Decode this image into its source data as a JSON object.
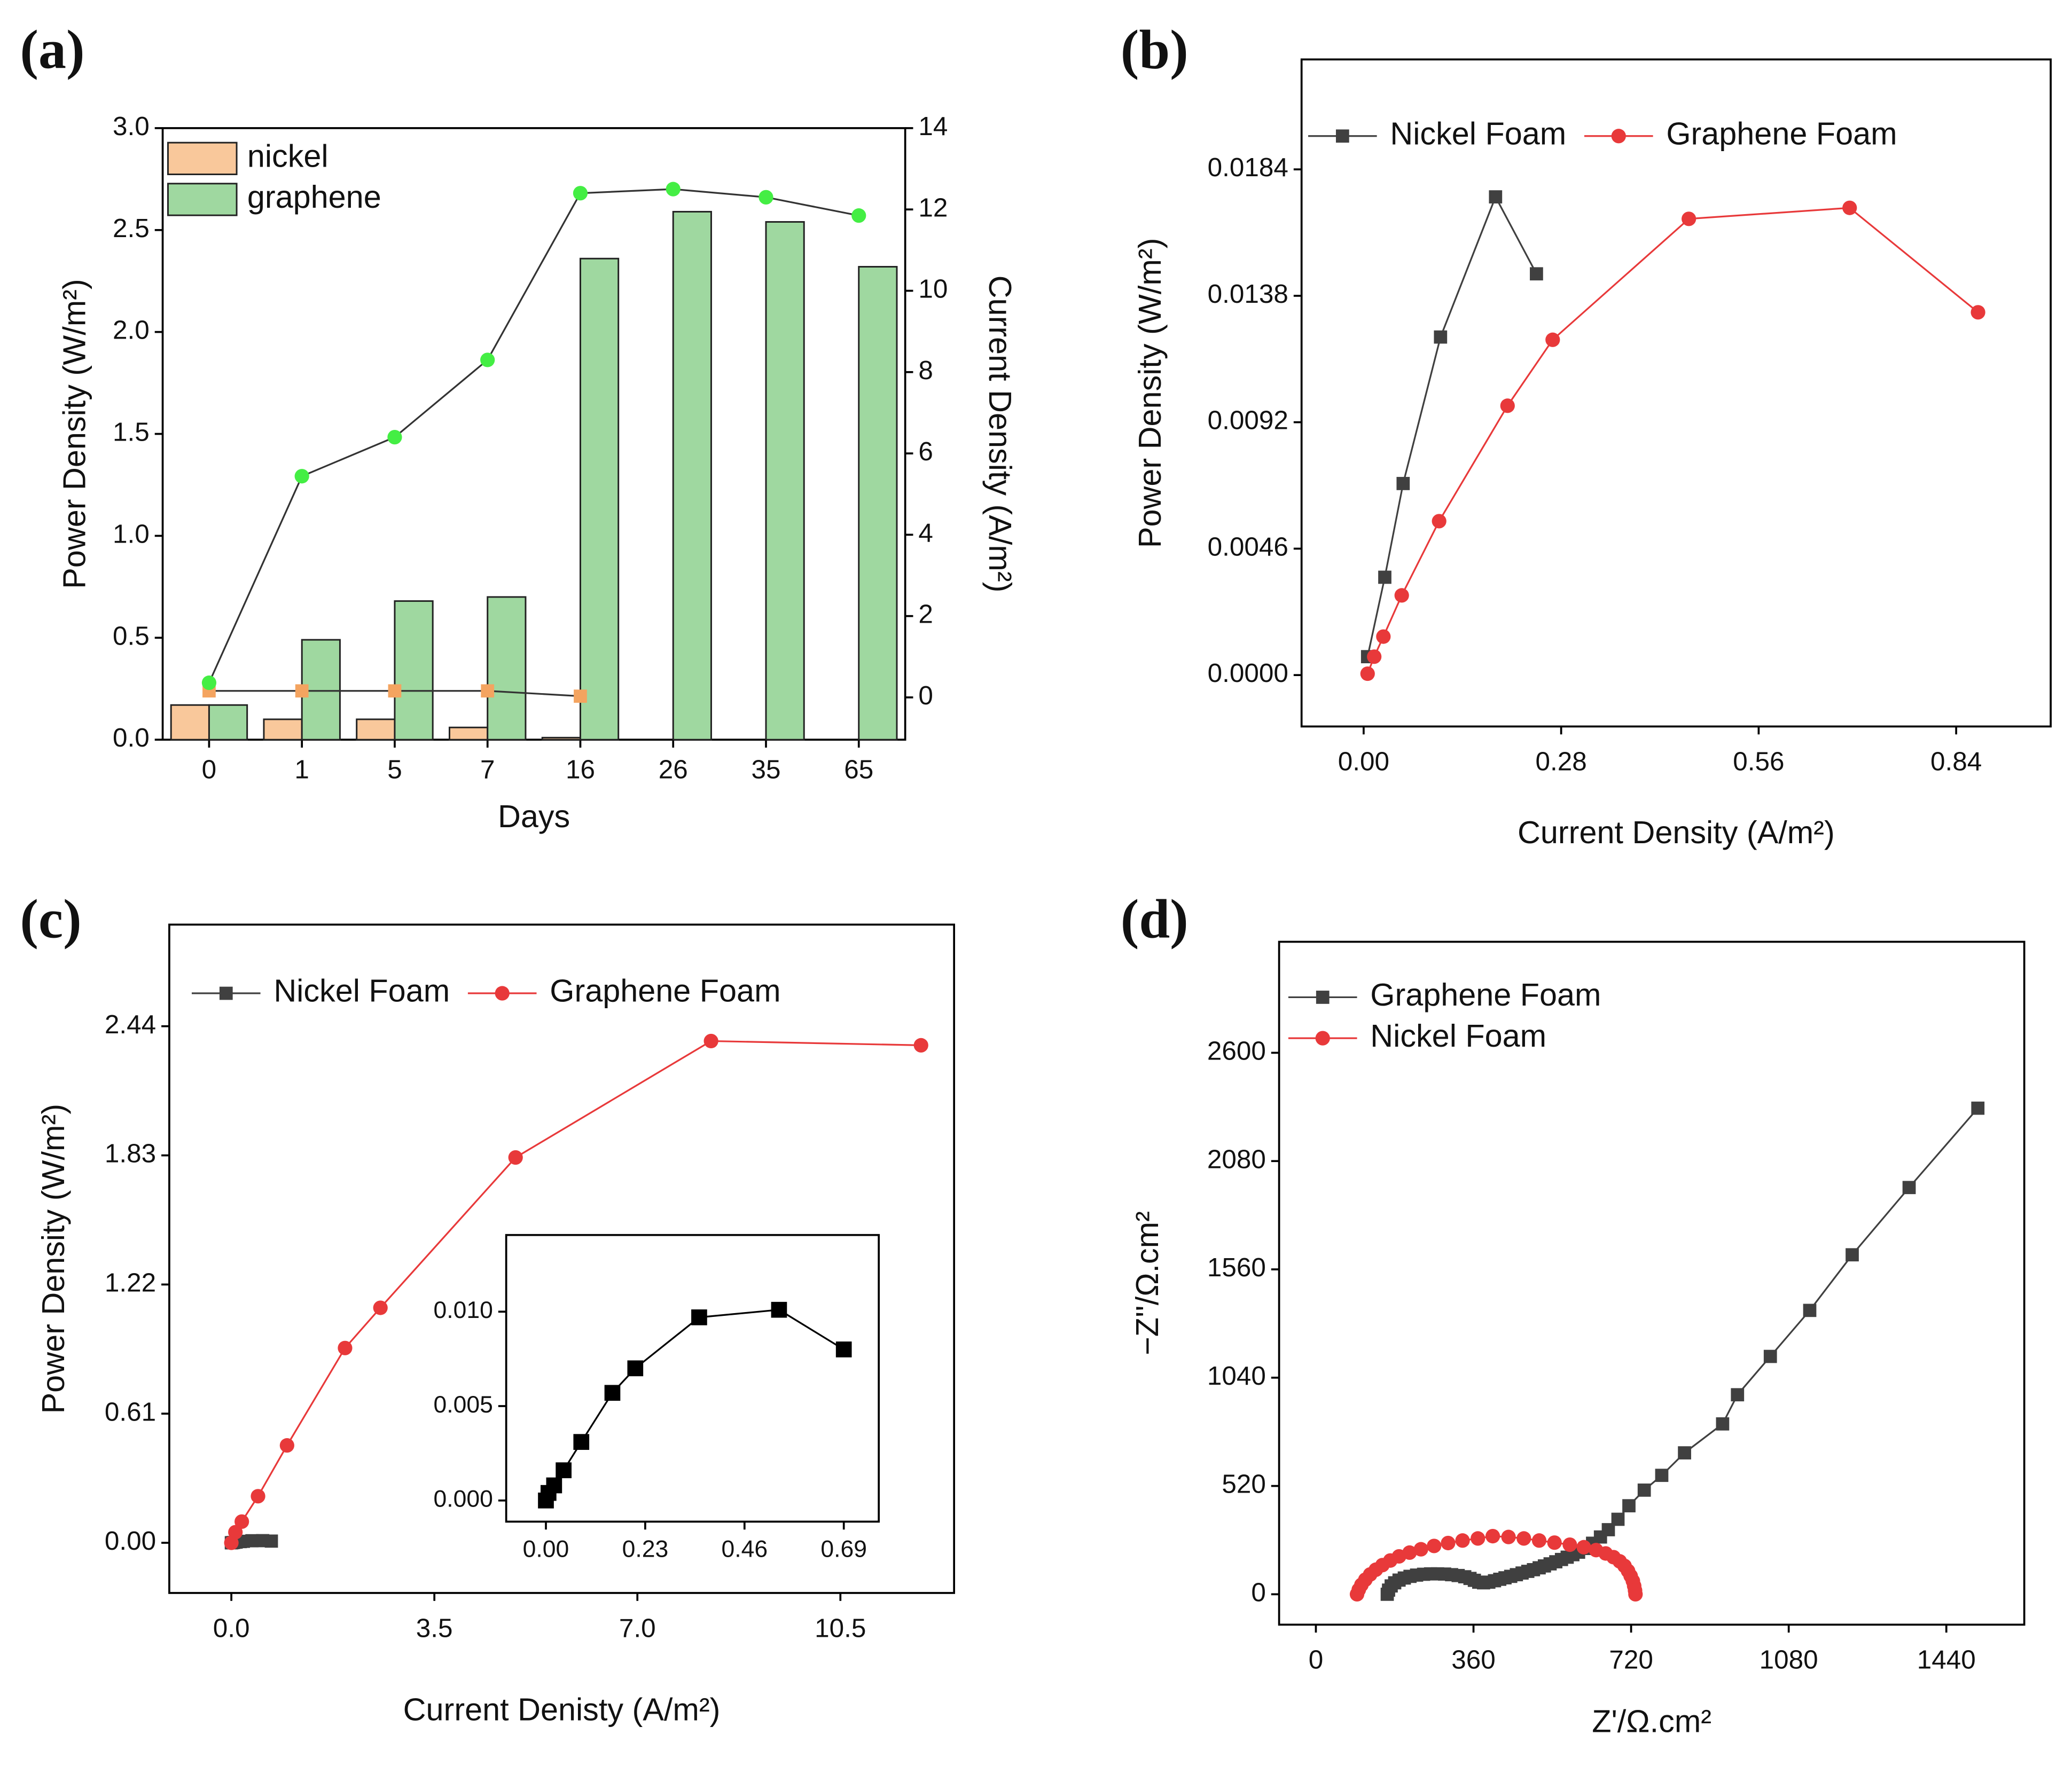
{
  "chart_data": [
    {
      "type": "bar",
      "title": "(a)",
      "xlabel": "Days",
      "ylabel": "Power Density (W/m²)",
      "y2label": "Current Density (A/m²)",
      "categories": [
        "0",
        "1",
        "5",
        "7",
        "16",
        "26",
        "35",
        "65"
      ],
      "ylim": [
        0,
        3.0
      ],
      "yticks": [
        {
          "value": 0,
          "label": "0.0"
        },
        0.5,
        {
          "value": 1,
          "label": "1.0"
        },
        1.5,
        {
          "value": 2,
          "label": "2.0"
        },
        2.5,
        {
          "value": 3,
          "label": "3.0"
        }
      ],
      "y2lim": [
        -1.04,
        14
      ],
      "y2ticks": [
        0,
        2,
        4,
        6,
        8,
        10,
        12,
        14
      ],
      "legend": "upper left",
      "legend_ncol": 1,
      "series": [
        {
          "name": "nickel",
          "color": "#f9c89b",
          "values": [
            0.17,
            0.1,
            0.1,
            0.06,
            0.01,
            null,
            null,
            null
          ]
        },
        {
          "name": "graphene",
          "color": "#9fd8a0",
          "values": [
            0.17,
            0.49,
            0.68,
            0.7,
            2.36,
            2.59,
            2.54,
            2.32
          ]
        },
        {
          "color": "#f4a460",
          "marker": "square",
          "line_color": "#333333",
          "axis": "y2",
          "values": [
            0.16,
            0.16,
            0.16,
            0.16,
            0.03,
            null,
            null,
            null
          ]
        },
        {
          "color": "#44ee44",
          "marker": "circle",
          "line_color": "#333333",
          "axis": "y2",
          "values": [
            0.36,
            5.44,
            6.4,
            8.3,
            12.4,
            12.5,
            12.3,
            11.85
          ]
        }
      ]
    },
    {
      "type": "line",
      "title": "(b)",
      "xlabel": "Current Density (A/m²)",
      "ylabel": "Power Density (W/m²)",
      "xlim": [
        -0.088,
        0.974
      ],
      "xticks": [
        {
          "value": 0,
          "label": "0.00"
        },
        0.28,
        0.56,
        0.84
      ],
      "ylim": [
        -0.00187,
        0.0224
      ],
      "yticks": [
        {
          "value": 0,
          "label": "0.0000"
        },
        0.0046,
        0.0092,
        0.0138,
        0.0184
      ],
      "legend": "upper left",
      "legend_ncol": 2,
      "series": [
        {
          "name": "Nickel Foam",
          "color": "#404040",
          "marker": "square",
          "x": [
            0.0056,
            0.03,
            0.056,
            0.109,
            0.187,
            0.245
          ],
          "values": [
            0.00067,
            0.00356,
            0.00697,
            0.0123,
            0.0174,
            0.0146
          ]
        },
        {
          "name": "Graphene Foam",
          "color": "#e8393a",
          "marker": "circle",
          "x": [
            0.0056,
            0.015,
            0.028,
            0.054,
            0.107,
            0.204,
            0.268,
            0.461,
            0.689,
            0.871
          ],
          "values": [
            5e-05,
            0.00067,
            0.0014,
            0.0029,
            0.0056,
            0.0098,
            0.0122,
            0.0166,
            0.017,
            0.0132
          ]
        }
      ]
    },
    {
      "type": "line",
      "title": "(c)",
      "xlabel": "Current Denisty (A/m²)",
      "ylabel": "Power Density (W/m²)",
      "xlim": [
        -1.07,
        12.46
      ],
      "xticks": [
        {
          "value": 0,
          "label": "0.0"
        },
        3.5,
        {
          "value": 7,
          "label": "7.0"
        },
        10.5
      ],
      "ylim": [
        -0.237,
        2.92
      ],
      "yticks": [
        {
          "value": 0,
          "label": "0.00"
        },
        0.61,
        1.22,
        1.83,
        2.44
      ],
      "legend": "upper left",
      "legend_ncol": 2,
      "series": [
        {
          "name": "Nickel Foam",
          "color": "#404040",
          "marker": "square",
          "x": [
            0,
            0.006,
            0.019,
            0.041,
            0.082,
            0.154,
            0.207,
            0.355,
            0.54,
            0.69
          ],
          "values": [
            0,
            0.0004,
            0.0008,
            0.0016,
            0.0031,
            0.0057,
            0.007,
            0.0097,
            0.0101,
            0.008
          ]
        },
        {
          "name": "Graphene Foam",
          "color": "#e8393a",
          "marker": "circle",
          "x": [
            0,
            0.07,
            0.18,
            0.46,
            0.96,
            1.96,
            2.57,
            4.9,
            8.27,
            11.89
          ],
          "values": [
            0,
            0.05,
            0.1,
            0.22,
            0.46,
            0.92,
            1.11,
            1.82,
            2.37,
            2.35
          ]
        }
      ]
    },
    {
      "type": "line",
      "title": "(d)",
      "xlabel": "Z'/Ω.cm²",
      "ylabel": "−Z''/Ω.cm²",
      "xlim": [
        -84,
        1618
      ],
      "xticks": [
        0,
        360,
        720,
        1080,
        1440
      ],
      "ylim": [
        -146,
        3133
      ],
      "yticks": [
        0,
        520,
        1040,
        1560,
        2080,
        2600
      ],
      "legend": "upper left",
      "legend_ncol": 1,
      "series": [
        {
          "name": "Graphene Foam",
          "color": "#404040",
          "marker": "square",
          "x": [
            163,
            166,
            172,
            180,
            190,
            202,
            215,
            230,
            246,
            262,
            278,
            294,
            310,
            325,
            340,
            352,
            362,
            372,
            383,
            395,
            408,
            420,
            432,
            445,
            458,
            471,
            484,
            497,
            510,
            522,
            535,
            548,
            561,
            574,
            587,
            600,
            615,
            632,
            650,
            668,
            690,
            715,
            750,
            790,
            842,
            929,
            963,
            1038,
            1128,
            1225,
            1355,
            1512
          ],
          "values": [
            0,
            20,
            40,
            55,
            68,
            78,
            86,
            92,
            96,
            98,
            98,
            97,
            94,
            90,
            84,
            76,
            67,
            58,
            55,
            58,
            65,
            72,
            79,
            86,
            94,
            102,
            110,
            118,
            127,
            136,
            146,
            156,
            167,
            178,
            190,
            202,
            220,
            245,
            275,
            310,
            360,
            425,
            500,
            571,
            679,
            818,
            958,
            1142,
            1363,
            1630,
            1953,
            2334
          ]
        },
        {
          "name": "Nickel Foam",
          "color": "#e8393a",
          "marker": "circle",
          "x": [
            94,
            98,
            104,
            113,
            124,
            137,
            152,
            170,
            190,
            214,
            240,
            270,
            302,
            335,
            370,
            404,
            440,
            475,
            510,
            545,
            580,
            612,
            640,
            662,
            680,
            694,
            705,
            713,
            719,
            724,
            727,
            729,
            730
          ],
          "values": [
            0,
            22,
            45,
            70,
            95,
            118,
            140,
            162,
            182,
            200,
            216,
            232,
            246,
            258,
            268,
            279,
            275,
            268,
            258,
            248,
            238,
            226,
            212,
            196,
            178,
            158,
            136,
            112,
            88,
            64,
            40,
            18,
            0
          ]
        }
      ]
    },
    {
      "type": "line",
      "xlim": [
        -0.092,
        0.771
      ],
      "xticks": [
        {
          "value": 0,
          "label": "0.00"
        },
        0.23,
        0.46,
        0.69
      ],
      "ylim": [
        -0.00112,
        0.01406
      ],
      "yticks": [
        {
          "value": 0,
          "label": "0.000"
        },
        {
          "value": 0.005,
          "label": "0.005"
        },
        {
          "value": 0.01,
          "label": "0.010"
        }
      ],
      "series": [
        {
          "color": "#000000",
          "marker": "square",
          "x": [
            0,
            0.006,
            0.019,
            0.041,
            0.082,
            0.154,
            0.207,
            0.355,
            0.54,
            0.69
          ],
          "values": [
            0,
            0.0004,
            0.0008,
            0.0016,
            0.0031,
            0.0057,
            0.007,
            0.0097,
            0.0101,
            0.008
          ]
        }
      ]
    }
  ]
}
